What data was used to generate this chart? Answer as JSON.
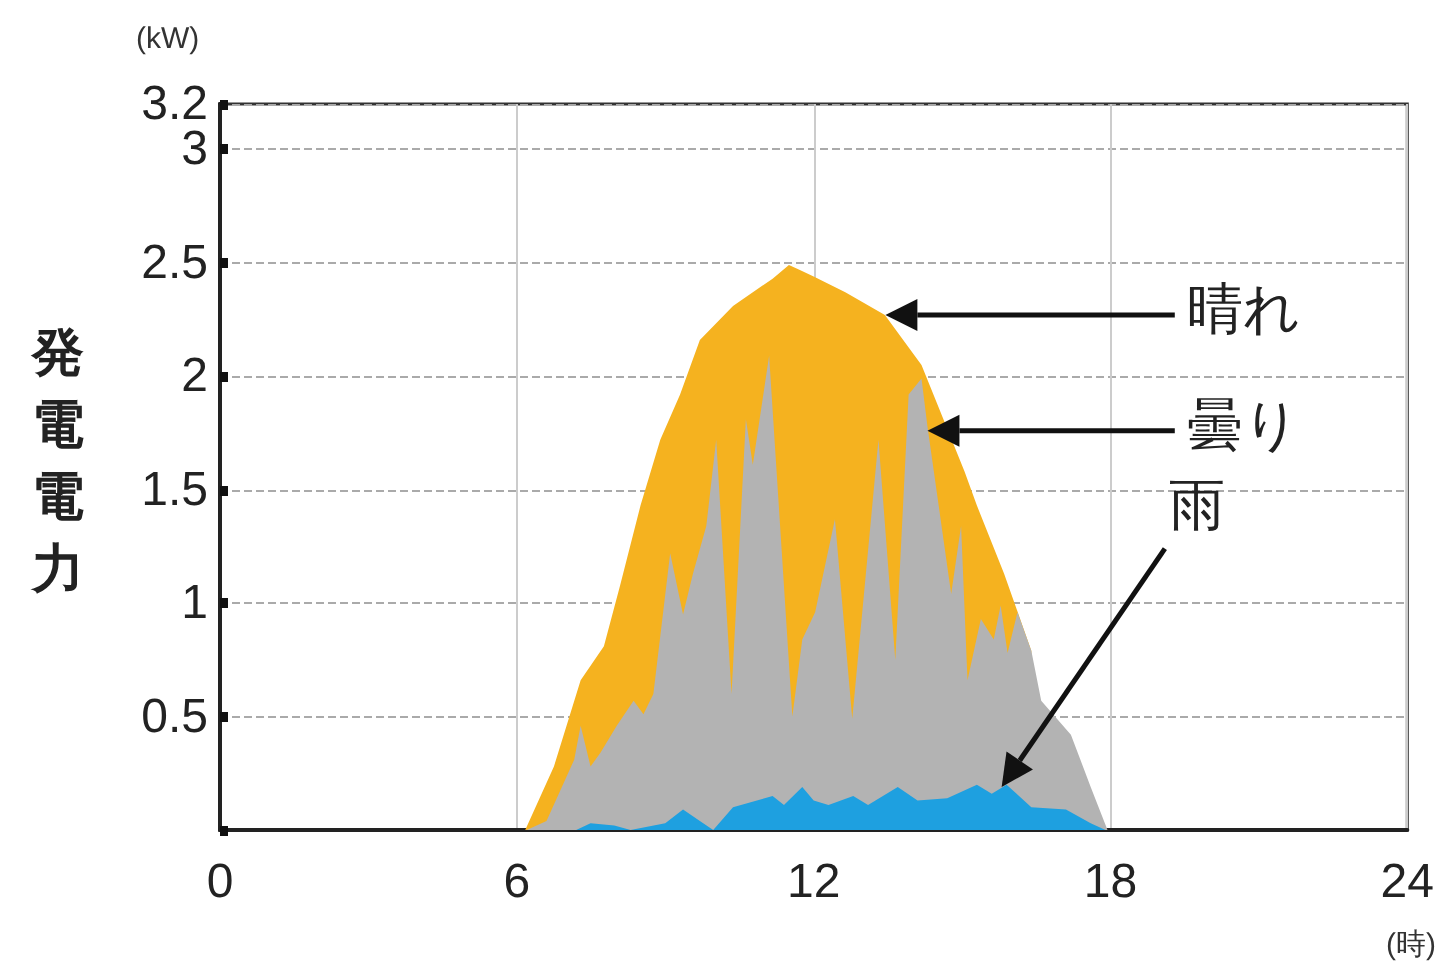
{
  "chart_data": {
    "type": "area",
    "ylabel": "発電電力",
    "annotations": [
      "(kW)",
      "(時)"
    ],
    "xlim": [
      0,
      24
    ],
    "xticks": [
      0,
      6,
      12,
      18,
      24
    ],
    "ylim": [
      0,
      3.2
    ],
    "yticks": [
      {
        "value": 0,
        "label": null
      },
      0.5,
      1,
      1.5,
      2,
      2.5,
      3,
      3.2
    ],
    "grid": true,
    "legend": false,
    "marker": "none",
    "series": [
      {
        "name": "晴れ",
        "color": "#f5b21f",
        "x": [
          6.17,
          6.75,
          7.29,
          7.76,
          8.09,
          8.5,
          8.9,
          9.3,
          9.7,
          10.37,
          11.17,
          11.5,
          11.7,
          12.0,
          12.64,
          13.44,
          14.18,
          15.05,
          15.3,
          15.85,
          16.4
        ],
        "values": [
          0,
          0.28,
          0.66,
          0.81,
          1.08,
          1.43,
          1.72,
          1.92,
          2.16,
          2.31,
          2.43,
          2.49,
          2.47,
          2.44,
          2.37,
          2.27,
          2.05,
          1.58,
          1.43,
          1.13,
          0.79
        ]
      },
      {
        "name": "曇り",
        "color": "#b3b3b3",
        "x": [
          6.2,
          6.6,
          7.16,
          7.29,
          7.49,
          7.69,
          8.02,
          8.36,
          8.56,
          8.76,
          9.1,
          9.36,
          9.56,
          9.83,
          10.03,
          10.34,
          10.63,
          10.77,
          11.1,
          11.57,
          11.77,
          12.03,
          12.43,
          12.78,
          13.31,
          13.65,
          13.92,
          14.18,
          14.3,
          14.78,
          14.98,
          15.11,
          15.38,
          15.64,
          15.78,
          15.92,
          16.12,
          16.4,
          16.6,
          17.2,
          17.6,
          17.94
        ],
        "values": [
          0,
          0.04,
          0.31,
          0.46,
          0.28,
          0.34,
          0.46,
          0.57,
          0.51,
          0.6,
          1.22,
          0.95,
          1.13,
          1.34,
          1.72,
          0.6,
          1.81,
          1.61,
          2.09,
          0.5,
          0.84,
          0.96,
          1.37,
          0.49,
          1.72,
          0.75,
          1.92,
          1.99,
          1.78,
          1.04,
          1.34,
          0.66,
          0.93,
          0.84,
          0.99,
          0.78,
          0.96,
          0.79,
          0.57,
          0.42,
          0.19,
          0
        ]
      },
      {
        "name": "雨",
        "color": "#1ea0e0",
        "x": [
          7.2,
          7.49,
          7.97,
          8.3,
          9.0,
          9.36,
          9.7,
          9.97,
          10.37,
          11.17,
          11.4,
          11.77,
          12.0,
          12.3,
          12.8,
          13.1,
          13.7,
          14.1,
          14.7,
          15.3,
          15.6,
          15.9,
          16.4,
          17.1,
          17.6,
          17.9
        ],
        "values": [
          0,
          0.03,
          0.02,
          0,
          0.03,
          0.09,
          0.04,
          0,
          0.1,
          0.15,
          0.11,
          0.19,
          0.13,
          0.11,
          0.15,
          0.11,
          0.19,
          0.13,
          0.14,
          0.2,
          0.16,
          0.2,
          0.1,
          0.09,
          0.03,
          0
        ]
      }
    ]
  }
}
